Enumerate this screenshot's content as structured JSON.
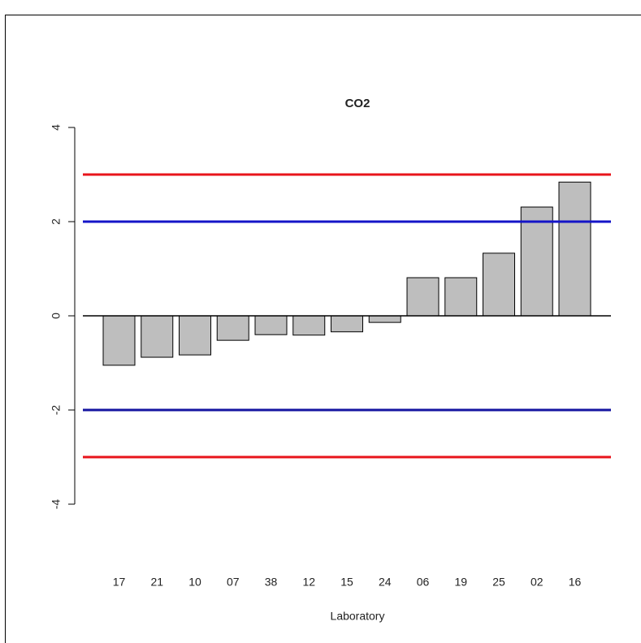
{
  "chart_data": {
    "type": "bar",
    "title": "CO2",
    "x_label": "Laboratory",
    "categories": [
      "17",
      "21",
      "10",
      "07",
      "38",
      "12",
      "15",
      "24",
      "06",
      "19",
      "25",
      "02",
      "16"
    ],
    "values": [
      -1.05,
      -0.88,
      -0.83,
      -0.52,
      -0.4,
      -0.41,
      -0.34,
      -0.14,
      0.81,
      0.81,
      1.33,
      2.31,
      2.84
    ],
    "color": "#bebebe",
    "ylim": [
      -4,
      4
    ],
    "yticks": [
      -4,
      -2,
      0,
      2,
      4
    ],
    "reference_lines": [
      {
        "value": 3,
        "color": "#e8141b"
      },
      {
        "value": 2,
        "color": "#1414c8"
      },
      {
        "value": -2,
        "color": "#1414a0"
      },
      {
        "value": -3,
        "color": "#e8141b"
      }
    ]
  }
}
